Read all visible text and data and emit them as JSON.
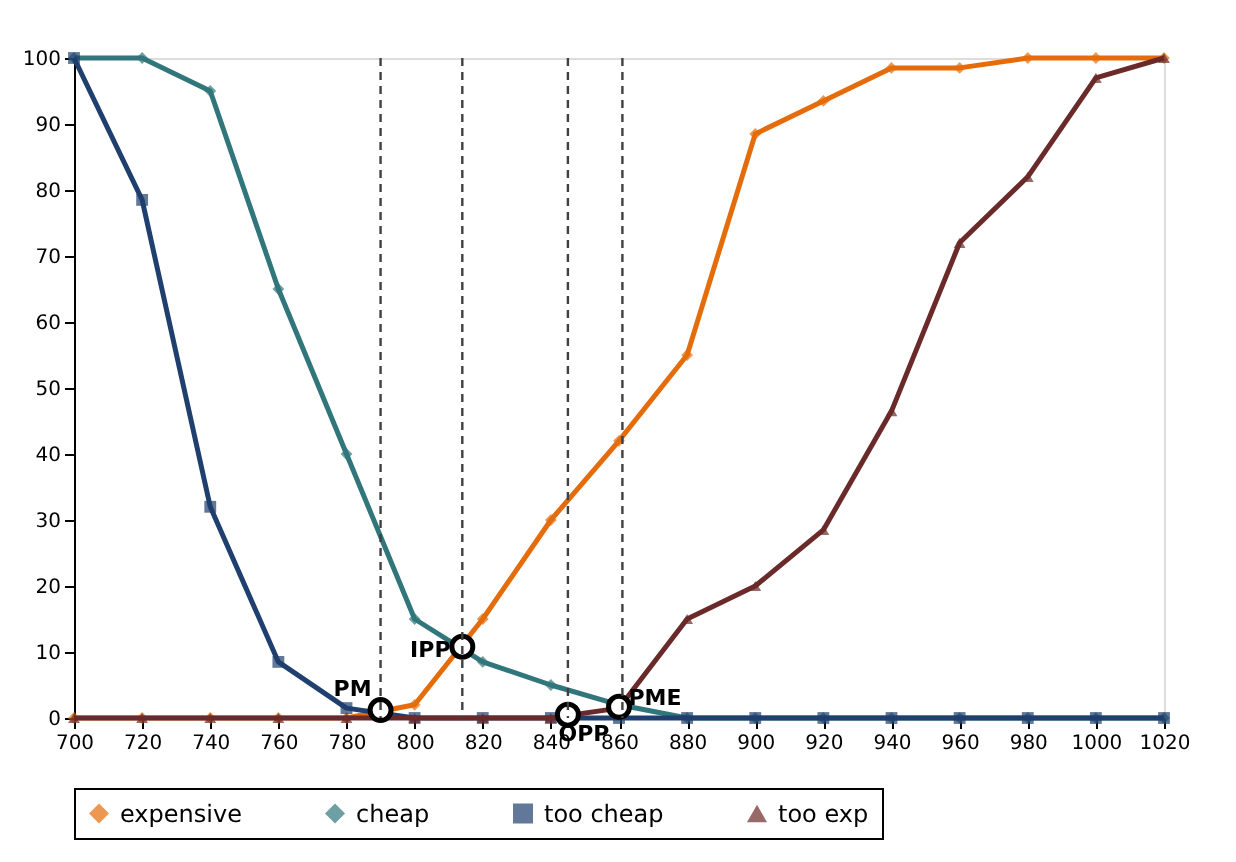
{
  "chart_data": {
    "type": "line",
    "x": [
      700,
      720,
      740,
      760,
      780,
      800,
      820,
      840,
      860,
      880,
      900,
      920,
      940,
      960,
      980,
      1000,
      1020
    ],
    "series": [
      {
        "name": "expensive",
        "color": "#e46c0a",
        "marker": "diamond",
        "values": [
          0,
          0,
          0,
          0,
          0,
          2,
          15,
          30,
          42,
          55,
          88.5,
          93.5,
          98.5,
          98.5,
          100,
          100,
          100
        ]
      },
      {
        "name": "cheap",
        "color": "#31767a",
        "marker": "diamond",
        "values": [
          100,
          100,
          95,
          65,
          40,
          15,
          8.5,
          5,
          2,
          0,
          0,
          0,
          0,
          0,
          0,
          0,
          0
        ]
      },
      {
        "name": "too cheap",
        "color": "#1f3f6e",
        "marker": "square",
        "values": [
          100,
          78.5,
          32,
          8.5,
          1.5,
          0,
          0,
          0,
          0,
          0,
          0,
          0,
          0,
          0,
          0,
          0,
          0
        ]
      },
      {
        "name": "too exp",
        "color": "#6b2a2a",
        "marker": "triangle",
        "values": [
          0,
          0,
          0,
          0,
          0,
          0,
          0,
          0,
          1.5,
          15,
          20,
          28.5,
          46.5,
          72,
          82,
          97,
          100
        ]
      },
      {
        "type": "scatter",
        "color": "#000000",
        "marker": "circle",
        "x": [
          790,
          814,
          845,
          860
        ],
        "values": [
          1.2,
          10.8,
          0.5,
          1.7
        ]
      }
    ],
    "annotations": [
      {
        "text": "PM",
        "x": 790,
        "y": 1.2
      },
      {
        "text": "IPP",
        "x": 814,
        "y": 10.8
      },
      {
        "text": "OPP",
        "x": 845,
        "y": 0.5
      },
      {
        "text": "PME",
        "x": 860,
        "y": 1.7
      }
    ],
    "ref_lines": [
      {
        "axis": "x",
        "value": 790,
        "color": "#404040",
        "line_style": "dashed"
      },
      {
        "axis": "x",
        "value": 814,
        "color": "#404040",
        "line_style": "dashed"
      },
      {
        "axis": "x",
        "value": 845,
        "color": "#404040",
        "line_style": "dashed"
      },
      {
        "axis": "x",
        "value": 861,
        "color": "#404040",
        "line_style": "dashed"
      }
    ],
    "xlim": [
      700,
      1020
    ],
    "xticks": [
      700,
      720,
      740,
      760,
      780,
      800,
      820,
      840,
      860,
      880,
      900,
      920,
      940,
      960,
      980,
      1000,
      1020
    ],
    "ylim": [
      0,
      100
    ],
    "yticks": [
      0,
      10,
      20,
      30,
      40,
      50,
      60,
      70,
      80,
      90,
      100
    ],
    "grid": false,
    "legend": "bottom",
    "line_style": "solid"
  }
}
